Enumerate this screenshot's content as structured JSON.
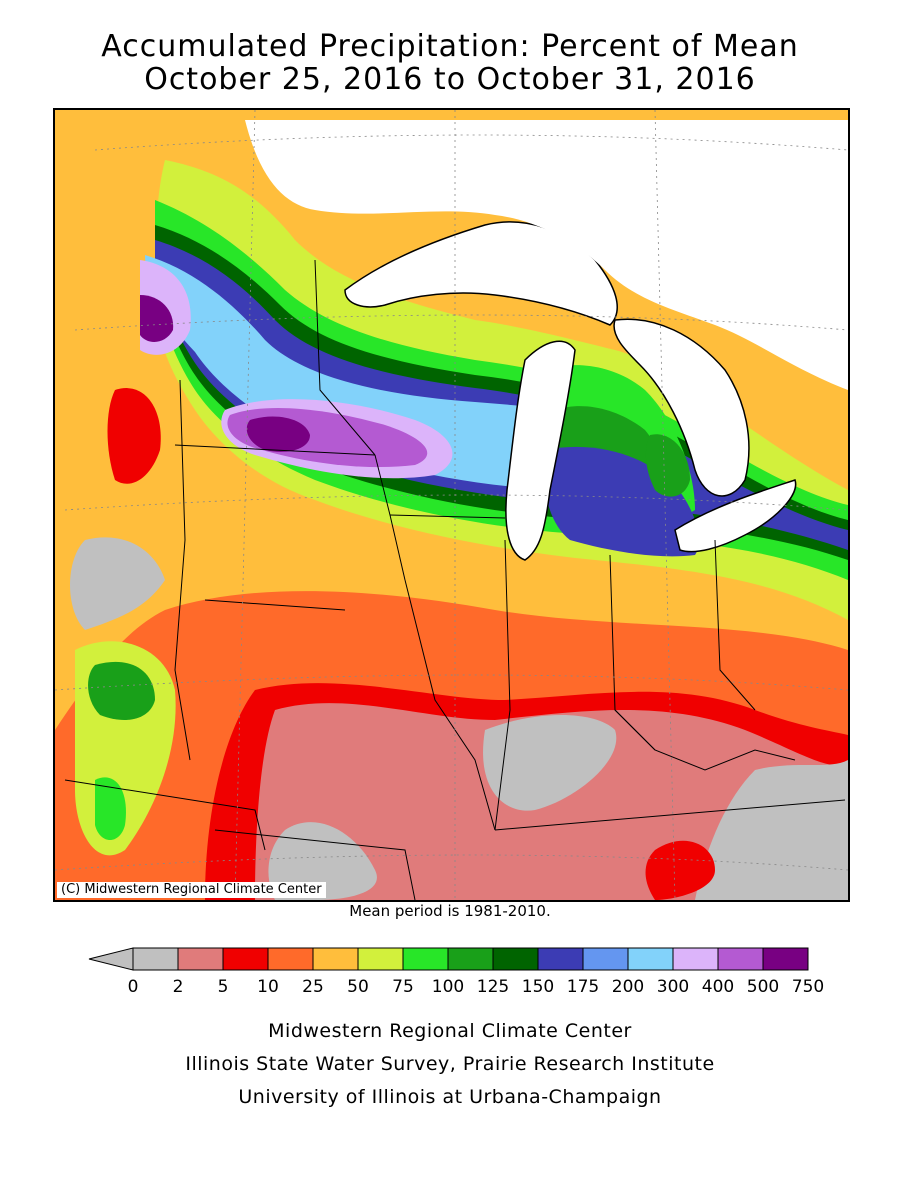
{
  "title_line1": "Accumulated Precipitation: Percent of Mean",
  "title_line2": "October 25, 2016 to October 31, 2016",
  "copyright": "(C) Midwestern Regional Climate Center",
  "mean_period": "Mean period is 1981-2010.",
  "legend": {
    "arrow_color": "#c0c0c0",
    "labels": [
      "0",
      "2",
      "5",
      "10",
      "25",
      "50",
      "75",
      "100",
      "125",
      "150",
      "175",
      "200",
      "300",
      "400",
      "500",
      "750"
    ],
    "colors": [
      "#c0c0c0",
      "#e07b7b",
      "#f00000",
      "#ff6a2a",
      "#ffbe3c",
      "#d2f03c",
      "#28e628",
      "#19a019",
      "#006400",
      "#3c3cb4",
      "#6496f0",
      "#82d2fa",
      "#dcb4fa",
      "#b45ad2",
      "#780082"
    ]
  },
  "credits": [
    "Midwestern Regional Climate Center",
    "Illinois State Water Survey, Prairie Research Institute",
    "University of Illinois at Urbana-Champaign"
  ]
}
